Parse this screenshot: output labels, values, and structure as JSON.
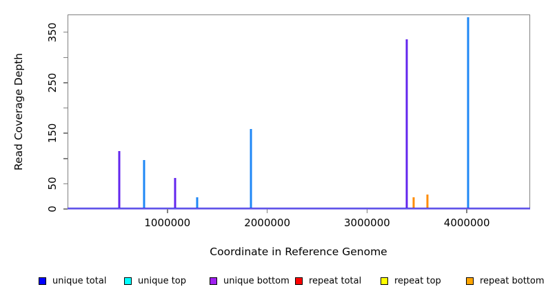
{
  "chart_data": {
    "type": "bar",
    "title": "",
    "xlabel": "Coordinate in Reference Genome",
    "ylabel": "Read Coverage Depth",
    "xlim": [
      0,
      4634000
    ],
    "ylim": [
      0,
      385
    ],
    "grid": false,
    "legend_position": "bottom",
    "axis_color": "#808080",
    "text_color": "#000000",
    "x_ticks": [
      {
        "value": 1000000,
        "label": "1000000"
      },
      {
        "value": 2000000,
        "label": "2000000"
      },
      {
        "value": 3000000,
        "label": "3000000"
      },
      {
        "value": 4000000,
        "label": "4000000"
      }
    ],
    "y_ticks": [
      {
        "value": 0,
        "label": "0"
      },
      {
        "value": 50,
        "label": "50"
      },
      {
        "value": 100,
        "label": ""
      },
      {
        "value": 150,
        "label": "150"
      },
      {
        "value": 200,
        "label": ""
      },
      {
        "value": 250,
        "label": "250"
      },
      {
        "value": 300,
        "label": ""
      },
      {
        "value": 350,
        "label": "350"
      }
    ],
    "legend": [
      {
        "name": "unique total",
        "color": "#0000FF"
      },
      {
        "name": "unique top",
        "color": "#00FFFF"
      },
      {
        "name": "unique bottom",
        "color": "#A020F0"
      },
      {
        "name": "repeat total",
        "color": "#FF0000"
      },
      {
        "name": "repeat top",
        "color": "#FFFF00"
      },
      {
        "name": "repeat bottom",
        "color": "#FFA500"
      }
    ],
    "series": [
      {
        "name": "unique total",
        "draw_color": "#1E87F6",
        "points": [
          {
            "x": 770000,
            "y": 97
          },
          {
            "x": 1295000,
            "y": 23
          },
          {
            "x": 1835000,
            "y": 159
          },
          {
            "x": 4010000,
            "y": 380
          }
        ]
      },
      {
        "name": "unique bottom",
        "draw_color": "#6326EE",
        "points": [
          {
            "x": 520000,
            "y": 115
          },
          {
            "x": 1075000,
            "y": 62
          },
          {
            "x": 3400000,
            "y": 336
          }
        ]
      },
      {
        "name": "repeat bottom",
        "draw_color": "#FF8C05",
        "points": [
          {
            "x": 3470000,
            "y": 23
          },
          {
            "x": 3605000,
            "y": 29
          }
        ]
      }
    ],
    "baseline": {
      "y": 0,
      "color_top": "#4338E6",
      "color_bottom": "#A094F0"
    }
  }
}
